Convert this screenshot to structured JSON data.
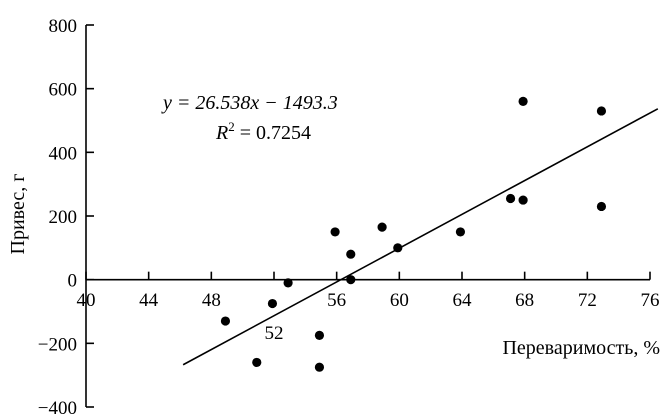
{
  "chart_data": {
    "type": "scatter",
    "title": "",
    "xlabel": "Переваримость, %",
    "ylabel": "Привес, г",
    "xlim": [
      40,
      76
    ],
    "ylim": [
      -400,
      800
    ],
    "x_ticks": [
      40,
      44,
      48,
      52,
      56,
      60,
      64,
      68,
      72,
      76
    ],
    "y_ticks": [
      -400,
      -200,
      0,
      200,
      400,
      600,
      800
    ],
    "grid": false,
    "legend": "none",
    "point_color": "#000000",
    "points": [
      {
        "x": 48.9,
        "y": -130
      },
      {
        "x": 50.9,
        "y": -260
      },
      {
        "x": 51.9,
        "y": -75
      },
      {
        "x": 52.9,
        "y": -10
      },
      {
        "x": 54.9,
        "y": -175
      },
      {
        "x": 54.9,
        "y": -275
      },
      {
        "x": 55.9,
        "y": 150
      },
      {
        "x": 56.9,
        "y": 80
      },
      {
        "x": 56.9,
        "y": 0
      },
      {
        "x": 58.9,
        "y": 165
      },
      {
        "x": 59.9,
        "y": 100
      },
      {
        "x": 63.9,
        "y": 150
      },
      {
        "x": 67.1,
        "y": 255
      },
      {
        "x": 67.9,
        "y": 250
      },
      {
        "x": 67.9,
        "y": 560
      },
      {
        "x": 72.9,
        "y": 530
      },
      {
        "x": 72.9,
        "y": 230
      }
    ],
    "trendline": {
      "slope": 26.538,
      "intercept": -1493.3,
      "x_range": [
        46.2,
        76.5
      ],
      "equation": "y = 26.538x − 1493.3",
      "r2_label": "R",
      "r2_sup": "2",
      "r2_value": " = 0.7254"
    }
  }
}
